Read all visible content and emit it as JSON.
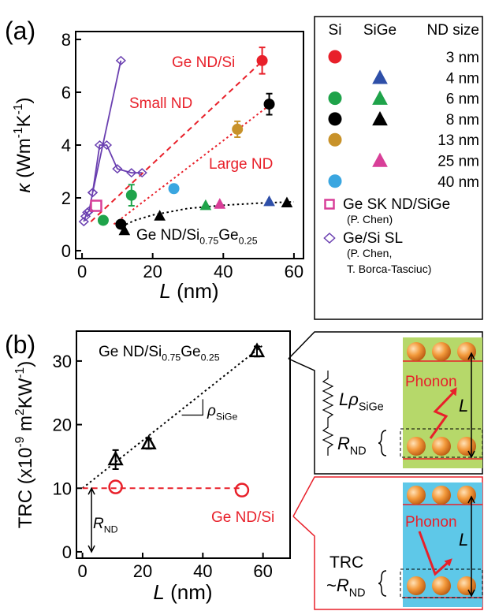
{
  "chart_data": [
    {
      "type": "scatter",
      "panel": "(a)",
      "x_label": [
        {
          "text": "L",
          "style": "italic"
        },
        {
          "text": " (nm)"
        }
      ],
      "y_label": [
        {
          "text": "κ",
          "style": "italic"
        },
        {
          "text": " (Wm"
        },
        {
          "text": "-1",
          "style": "sup"
        },
        {
          "text": "K"
        },
        {
          "text": "-1",
          "style": "sup"
        },
        {
          "text": ")"
        }
      ],
      "xlim": [
        -1.8,
        62.7
      ],
      "ylim": [
        -0.3,
        8.3
      ],
      "xticks": [
        0,
        20,
        40,
        60
      ],
      "yticks": [
        0,
        2,
        4,
        6,
        8
      ],
      "series": [
        {
          "marker": "none",
          "line": "dashed",
          "color": "#e8202a",
          "x": [
            2.5,
            52
          ],
          "values": [
            1.1,
            7.3
          ]
        },
        {
          "marker": "none",
          "line": "dotted",
          "color": "#e8202a",
          "x": [
            9,
            53
          ],
          "values": [
            1.0,
            5.5
          ]
        },
        {
          "marker": "none",
          "line": "dotted",
          "color": "#000000",
          "x": [
            10,
            15,
            20,
            30,
            40,
            50,
            60
          ],
          "values": [
            0.85,
            1.15,
            1.35,
            1.6,
            1.72,
            1.8,
            1.85
          ]
        },
        {
          "marker": "diamond",
          "line": "solid",
          "filled": false,
          "color": "#6a3fb0",
          "x": [
            0.5,
            1,
            1.5,
            2,
            3,
            11
          ],
          "values": [
            1.1,
            1.3,
            1.45,
            1.5,
            2.2,
            7.2
          ]
        },
        {
          "marker": "diamond",
          "line": "solid",
          "filled": false,
          "color": "#6a3fb0",
          "x": [
            3,
            5,
            7,
            10,
            14,
            17
          ],
          "values": [
            2.2,
            4.0,
            4.0,
            3.1,
            2.95,
            2.95
          ]
        },
        {
          "marker": "circle",
          "filled": true,
          "color": "#e8202a",
          "x": [
            51
          ],
          "values": [
            7.2
          ],
          "errors": [
            0.5
          ]
        },
        {
          "marker": "circle",
          "filled": true,
          "color": "#1fa34a",
          "x": [
            6,
            14
          ],
          "values": [
            1.15,
            2.1
          ],
          "errors": [
            null,
            0.4
          ]
        },
        {
          "marker": "circle",
          "filled": true,
          "color": "#000000",
          "x": [
            11,
            53
          ],
          "values": [
            1.0,
            5.55
          ],
          "errors": [
            null,
            0.4
          ]
        },
        {
          "marker": "circle",
          "filled": true,
          "color": "#c8922a",
          "x": [
            44
          ],
          "values": [
            4.6
          ],
          "errors": [
            0.3
          ]
        },
        {
          "marker": "circle",
          "filled": true,
          "color": "#3aa6e0",
          "x": [
            26
          ],
          "values": [
            2.35
          ],
          "errors": [
            0.15
          ]
        },
        {
          "marker": "triangle",
          "filled": true,
          "color": "#2e4fa8",
          "x": [
            53
          ],
          "values": [
            1.85
          ]
        },
        {
          "marker": "triangle",
          "filled": true,
          "color": "#1fa34a",
          "x": [
            35
          ],
          "values": [
            1.7
          ]
        },
        {
          "marker": "triangle",
          "filled": true,
          "color": "#000000",
          "x": [
            12,
            22,
            58
          ],
          "values": [
            0.75,
            1.3,
            1.8
          ]
        },
        {
          "marker": "triangle",
          "filled": true,
          "color": "#d83f98",
          "x": [
            39
          ],
          "values": [
            1.75
          ]
        },
        {
          "marker": "square",
          "filled": false,
          "color": "#d83f98",
          "x": [
            4
          ],
          "values": [
            1.7
          ]
        }
      ],
      "annotations": [
        {
          "color": "#e8202a",
          "parts": [
            {
              "text": "Ge ND/Si"
            }
          ]
        },
        {
          "color": "#e8202a",
          "parts": [
            {
              "text": "Small ND"
            }
          ]
        },
        {
          "color": "#e8202a",
          "parts": [
            {
              "text": "Large ND"
            }
          ]
        },
        {
          "color": "#000000",
          "parts": [
            {
              "text": "Ge ND/Si"
            },
            {
              "text": "0.75",
              "style": "sub"
            },
            {
              "text": "Ge"
            },
            {
              "text": "0.25",
              "style": "sub"
            }
          ]
        }
      ]
    },
    {
      "type": "scatter",
      "panel": "(b)",
      "x_label": [
        {
          "text": "L",
          "style": "italic"
        },
        {
          "text": " (nm)"
        }
      ],
      "y_label": [
        {
          "text": "TRC (x10"
        },
        {
          "text": "-9",
          "style": "sup"
        },
        {
          "text": " m"
        },
        {
          "text": "2",
          "style": "sup"
        },
        {
          "text": "KW"
        },
        {
          "text": "-1",
          "style": "sup"
        },
        {
          "text": ")"
        }
      ],
      "xlim": [
        -2,
        69
      ],
      "ylim": [
        -1,
        34.7
      ],
      "xticks": [
        0,
        20,
        40,
        60
      ],
      "yticks": [
        0,
        10,
        20,
        30
      ],
      "series": [
        {
          "marker": "none",
          "line": "dotted",
          "color": "#000000",
          "x": [
            0,
            60
          ],
          "values": [
            10,
            32.5
          ]
        },
        {
          "marker": "none",
          "line": "dashed",
          "color": "#e8202a",
          "x": [
            0,
            53
          ],
          "values": [
            10,
            10
          ]
        },
        {
          "marker": "triangle",
          "filled": false,
          "color": "#000000",
          "x": [
            11,
            22,
            58
          ],
          "values": [
            14.5,
            17,
            31.5
          ],
          "errors": [
            1.5,
            0.8,
            0.8
          ]
        },
        {
          "marker": "circle",
          "filled": false,
          "color": "#e8202a",
          "x": [
            11,
            53
          ],
          "values": [
            10.2,
            9.7
          ]
        }
      ],
      "annotations": [
        {
          "color": "#000000",
          "parts": [
            {
              "text": "Ge ND/Si"
            },
            {
              "text": "0.75",
              "style": "sub"
            },
            {
              "text": "Ge"
            },
            {
              "text": "0.25",
              "style": "sub"
            }
          ]
        },
        {
          "color": "#000000",
          "parts": [
            {
              "text": "ρ",
              "style": "italic"
            },
            {
              "text": "SiGe",
              "style": "sub"
            }
          ]
        },
        {
          "color": "#e8202a",
          "parts": [
            {
              "text": "Ge ND/Si"
            }
          ]
        },
        {
          "color": "#000000",
          "parts": [
            {
              "text": "R",
              "style": "italic"
            },
            {
              "text": "ND",
              "style": "sub"
            }
          ]
        }
      ]
    }
  ],
  "legend": {
    "headers": [
      "Si",
      "SiGe",
      "ND size"
    ],
    "rows": [
      {
        "si": "#e8202a",
        "sige": null,
        "size": "3 nm"
      },
      {
        "si": null,
        "sige": "#2e4fa8",
        "size": "4 nm"
      },
      {
        "si": "#1fa34a",
        "sige": "#1fa34a",
        "size": "6 nm"
      },
      {
        "si": "#000000",
        "sige": "#000000",
        "size": "8 nm"
      },
      {
        "si": "#c8922a",
        "sige": null,
        "size": "13 nm"
      },
      {
        "si": null,
        "sige": "#d83f98",
        "size": "25 nm"
      },
      {
        "si": "#3aa6e0",
        "sige": null,
        "size": "40 nm"
      }
    ],
    "extra": [
      {
        "marker": "square",
        "color": "#d83f98",
        "lines": [
          "Ge SK ND/SiGe",
          "(P. Chen)"
        ]
      },
      {
        "marker": "diamond",
        "color": "#6a3fb0",
        "lines": [
          "Ge/Si SL",
          "(P. Chen,",
          "T. Borca-Tasciuc)"
        ]
      }
    ]
  },
  "diagrams": {
    "top": {
      "phonon": "Phonon",
      "length": [
        {
          "text": "L",
          "style": "italic"
        }
      ],
      "spring": [
        {
          "text": "L",
          "style": "italic"
        },
        {
          "text": "ρ",
          "style": "italic"
        },
        {
          "text": "SiGe",
          "style": "sub"
        }
      ],
      "resistance": [
        {
          "text": "R",
          "style": "italic"
        },
        {
          "text": "ND",
          "style": "sub"
        }
      ]
    },
    "bottom": {
      "phonon": "Phonon",
      "length": [
        {
          "text": "L",
          "style": "italic"
        }
      ],
      "label": "TRC",
      "resistance": [
        {
          "text": "~"
        },
        {
          "text": "R",
          "style": "italic"
        },
        {
          "text": "ND",
          "style": "sub"
        }
      ]
    }
  }
}
